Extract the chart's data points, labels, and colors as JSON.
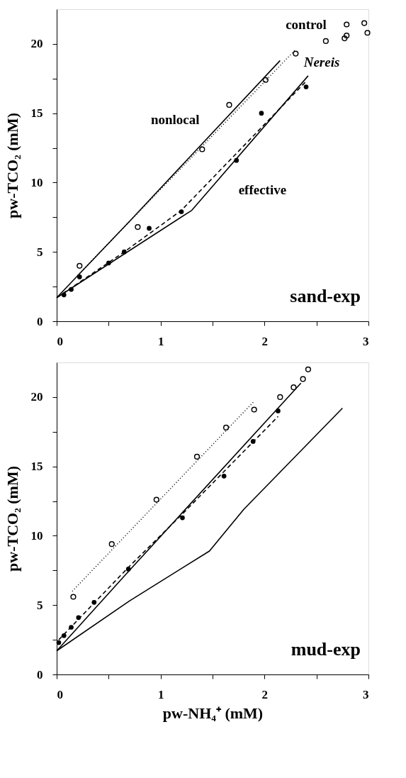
{
  "chart_data": [
    {
      "type": "scatter",
      "ylabel": "pw-TCO₂ (mM)",
      "xlim": [
        0,
        3
      ],
      "ylim": [
        0,
        22.5
      ],
      "xticks": [
        0,
        {
          "value": 0.5,
          "label": null
        },
        1,
        {
          "value": 1.5,
          "label": null
        },
        2,
        {
          "value": 2.5,
          "label": null
        },
        3
      ],
      "yticks": [
        0,
        {
          "value": 2.5,
          "label": null
        },
        5,
        {
          "value": 7.5,
          "label": null
        },
        10,
        {
          "value": 12.5,
          "label": null
        },
        15,
        {
          "value": 17.5,
          "label": null
        },
        20
      ],
      "grid": false,
      "series": [
        {
          "type": "line",
          "line_style": "solid",
          "color": "#000000",
          "x": [
            0,
            0.7,
            2.15
          ],
          "values": [
            1.7,
            7.2,
            18.8
          ]
        },
        {
          "type": "line",
          "line_style": "dotted",
          "color": "#000000",
          "x": [
            0.2,
            2.3
          ],
          "values": [
            3.3,
            19.6
          ]
        },
        {
          "type": "line",
          "line_style": "dashed",
          "color": "#000000",
          "x": [
            0,
            0.65,
            1.2,
            2.4
          ],
          "values": [
            1.7,
            5.0,
            8.0,
            17.3
          ]
        },
        {
          "type": "line",
          "line_style": "solid",
          "color": "#000000",
          "x": [
            0,
            1.3,
            2.42
          ],
          "values": [
            1.7,
            8.0,
            17.7
          ]
        },
        {
          "marker": "circle",
          "color": "#000000",
          "x": [
            0.22,
            0.78,
            1.4,
            1.66,
            2.01,
            2.3,
            2.59,
            2.77,
            2.79,
            2.79,
            2.96,
            2.99
          ],
          "values": [
            4.0,
            6.8,
            12.4,
            15.6,
            17.4,
            19.3,
            20.2,
            20.4,
            20.6,
            21.4,
            21.5,
            20.8
          ]
        },
        {
          "marker": "dot",
          "color": "#000000",
          "x": [
            0.07,
            0.14,
            0.22,
            0.5,
            0.65,
            0.89,
            1.2,
            1.73,
            1.97,
            2.4
          ],
          "values": [
            1.9,
            2.3,
            3.2,
            4.2,
            5.0,
            6.7,
            7.9,
            11.6,
            15.0,
            16.9
          ]
        }
      ],
      "annotations": [
        "control",
        "Nereis",
        "nonlocal",
        "effective",
        "sand-exp"
      ]
    },
    {
      "type": "scatter",
      "xlabel": "pw-NH₄⁺ (mM)",
      "ylabel": "pw-TCO₂ (mM)",
      "xlim": [
        0,
        3
      ],
      "ylim": [
        0,
        22.5
      ],
      "xticks": [
        0,
        {
          "value": 0.5,
          "label": null
        },
        1,
        {
          "value": 1.5,
          "label": null
        },
        2,
        {
          "value": 2.5,
          "label": null
        },
        3
      ],
      "yticks": [
        0,
        {
          "value": 2.5,
          "label": null
        },
        5,
        {
          "value": 7.5,
          "label": null
        },
        10,
        {
          "value": 12.5,
          "label": null
        },
        15,
        {
          "value": 17.5,
          "label": null
        },
        20
      ],
      "grid": false,
      "series": [
        {
          "type": "line",
          "line_style": "dotted",
          "color": "#000000",
          "x": [
            0.15,
            1.9
          ],
          "values": [
            6.0,
            19.7
          ]
        },
        {
          "type": "line",
          "line_style": "solid",
          "color": "#000000",
          "x": [
            0,
            0.7,
            2.35
          ],
          "values": [
            1.7,
            7.5,
            21.0
          ]
        },
        {
          "type": "line",
          "line_style": "dashed",
          "color": "#000000",
          "x": [
            0.02,
            0.7,
            1.2,
            2.13
          ],
          "values": [
            2.5,
            7.8,
            11.5,
            18.6
          ]
        },
        {
          "type": "line",
          "line_style": "solid",
          "color": "#000000",
          "x": [
            0,
            0.7,
            1.47,
            1.8,
            2.75
          ],
          "values": [
            1.7,
            5.3,
            8.9,
            11.9,
            19.2
          ]
        },
        {
          "marker": "circle",
          "color": "#000000",
          "x": [
            0.16,
            0.53,
            0.96,
            1.35,
            1.63,
            1.9,
            2.15,
            2.28,
            2.37,
            2.42
          ],
          "values": [
            5.6,
            9.4,
            12.6,
            15.7,
            17.8,
            19.1,
            20.0,
            20.7,
            21.3,
            22.0
          ]
        },
        {
          "marker": "dot",
          "color": "#000000",
          "x": [
            0.02,
            0.07,
            0.14,
            0.21,
            0.36,
            0.69,
            1.21,
            1.61,
            1.89,
            2.13
          ],
          "values": [
            2.3,
            2.8,
            3.4,
            4.1,
            5.2,
            7.6,
            11.3,
            14.3,
            16.8,
            19.0
          ]
        }
      ],
      "annotations": [
        "mud-exp"
      ]
    }
  ]
}
